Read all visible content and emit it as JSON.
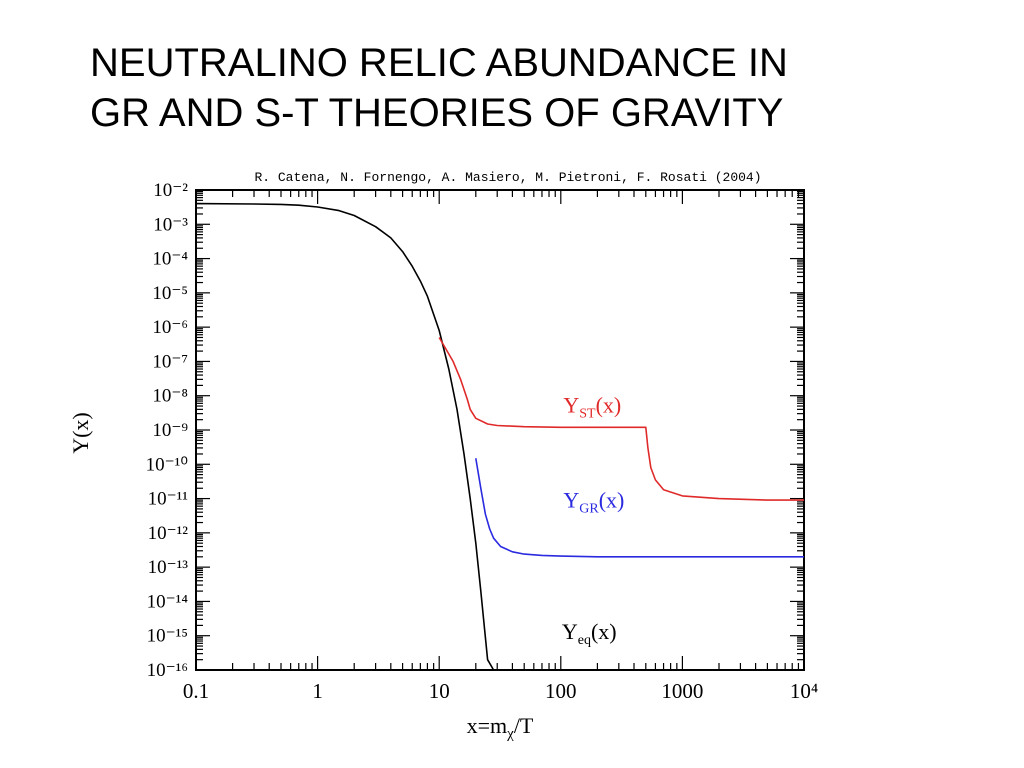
{
  "slide": {
    "title_line1": "NEUTRALINO RELIC ABUNDANCE IN",
    "title_line2": "GR AND S-T THEORIES OF GRAVITY"
  },
  "chart_data": {
    "type": "line",
    "title": "R. Catena, N. Fornengo, A. Masiero, M. Pietroni, F. Rosati (2004)",
    "xlabel": "x=m_χ/T",
    "ylabel": "Y(x)",
    "xscale": "log",
    "yscale": "log",
    "xlim": [
      0.1,
      10000
    ],
    "ylim": [
      1e-16,
      0.01
    ],
    "x_ticks": [
      "0.1",
      "1",
      "10",
      "100",
      "1000",
      "10⁴"
    ],
    "y_ticks": [
      "10⁻²",
      "10⁻³",
      "10⁻⁴",
      "10⁻⁵",
      "10⁻⁶",
      "10⁻⁷",
      "10⁻⁸",
      "10⁻⁹",
      "10⁻¹⁰",
      "10⁻¹¹",
      "10⁻¹²",
      "10⁻¹³",
      "10⁻¹⁴",
      "10⁻¹⁵",
      "10⁻¹⁶"
    ],
    "grid": false,
    "series": [
      {
        "name": "Y_eq(x)",
        "label_main": "Y",
        "label_sub": "eq",
        "label_suffix": "(x)",
        "color": "#000000",
        "x": [
          0.1,
          0.3,
          0.5,
          0.7,
          1,
          1.5,
          2,
          3,
          4,
          5,
          6,
          7,
          8,
          10,
          12,
          14,
          16,
          18,
          20,
          22,
          25,
          28,
          30,
          33,
          36
        ],
        "y": [
          0.004,
          0.0039,
          0.0038,
          0.0036,
          0.0032,
          0.0025,
          0.0018,
          0.00085,
          0.0004,
          0.00016,
          6e-05,
          2.2e-05,
          8e-06,
          8e-07,
          6e-08,
          4e-09,
          2e-10,
          1e-11,
          5e-13,
          2e-14,
          2e-16,
          1e-16,
          1e-16,
          1e-16,
          1e-16
        ]
      },
      {
        "name": "Y_GR(x)",
        "label_main": "Y",
        "label_sub": "GR",
        "label_suffix": "(x)",
        "color": "#2a2ae0",
        "x": [
          20,
          22,
          24,
          26,
          28,
          32,
          40,
          50,
          70,
          100,
          200,
          500,
          1000,
          5000,
          10000
        ],
        "y": [
          1.5e-10,
          2e-11,
          3.5e-12,
          1.3e-12,
          7e-13,
          4e-13,
          2.8e-13,
          2.4e-13,
          2.2e-13,
          2.1e-13,
          2e-13,
          2e-13,
          2e-13,
          2e-13,
          2e-13
        ]
      },
      {
        "name": "Y_ST(x)",
        "label_main": "Y",
        "label_sub": "ST",
        "label_suffix": "(x)",
        "color": "#e02a2a",
        "x": [
          10,
          13,
          15,
          17,
          18,
          20,
          25,
          30,
          50,
          100,
          200,
          500,
          520,
          550,
          600,
          700,
          1000,
          2000,
          5000,
          10000
        ],
        "y": [
          5e-07,
          1e-07,
          3e-08,
          8e-09,
          4e-09,
          2.2e-09,
          1.5e-09,
          1.35e-09,
          1.25e-09,
          1.2e-09,
          1.2e-09,
          1.2e-09,
          3e-10,
          8e-11,
          3.5e-11,
          1.8e-11,
          1.2e-11,
          1e-11,
          9e-12,
          9e-12
        ]
      }
    ]
  }
}
